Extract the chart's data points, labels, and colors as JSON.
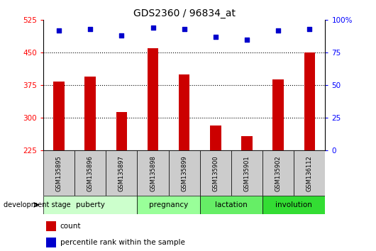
{
  "title": "GDS2360 / 96834_at",
  "samples": [
    "GSM135895",
    "GSM135896",
    "GSM135897",
    "GSM135898",
    "GSM135899",
    "GSM135900",
    "GSM135901",
    "GSM135902",
    "GSM136112"
  ],
  "counts": [
    383,
    395,
    313,
    460,
    400,
    283,
    258,
    388,
    450
  ],
  "percentile_ranks": [
    92,
    93,
    88,
    94,
    93,
    87,
    85,
    92,
    93
  ],
  "ylim_left": [
    225,
    525
  ],
  "ylim_right": [
    0,
    100
  ],
  "yticks_left": [
    225,
    300,
    375,
    450,
    525
  ],
  "yticks_right": [
    0,
    25,
    50,
    75,
    100
  ],
  "ytick_right_labels": [
    "0",
    "25",
    "50",
    "75",
    "100%"
  ],
  "bar_color": "#cc0000",
  "dot_color": "#0000cc",
  "stages": [
    {
      "label": "puberty",
      "start": 0,
      "end": 3,
      "color": "#ccffcc"
    },
    {
      "label": "pregnancy",
      "start": 3,
      "end": 5,
      "color": "#99ff99"
    },
    {
      "label": "lactation",
      "start": 5,
      "end": 7,
      "color": "#66ee66"
    },
    {
      "label": "involution",
      "start": 7,
      "end": 9,
      "color": "#33dd33"
    }
  ],
  "grid_dotted_at": [
    300,
    375,
    450
  ],
  "bar_width": 0.35,
  "sample_box_color": "#cccccc",
  "dev_stage_label": "development stage"
}
